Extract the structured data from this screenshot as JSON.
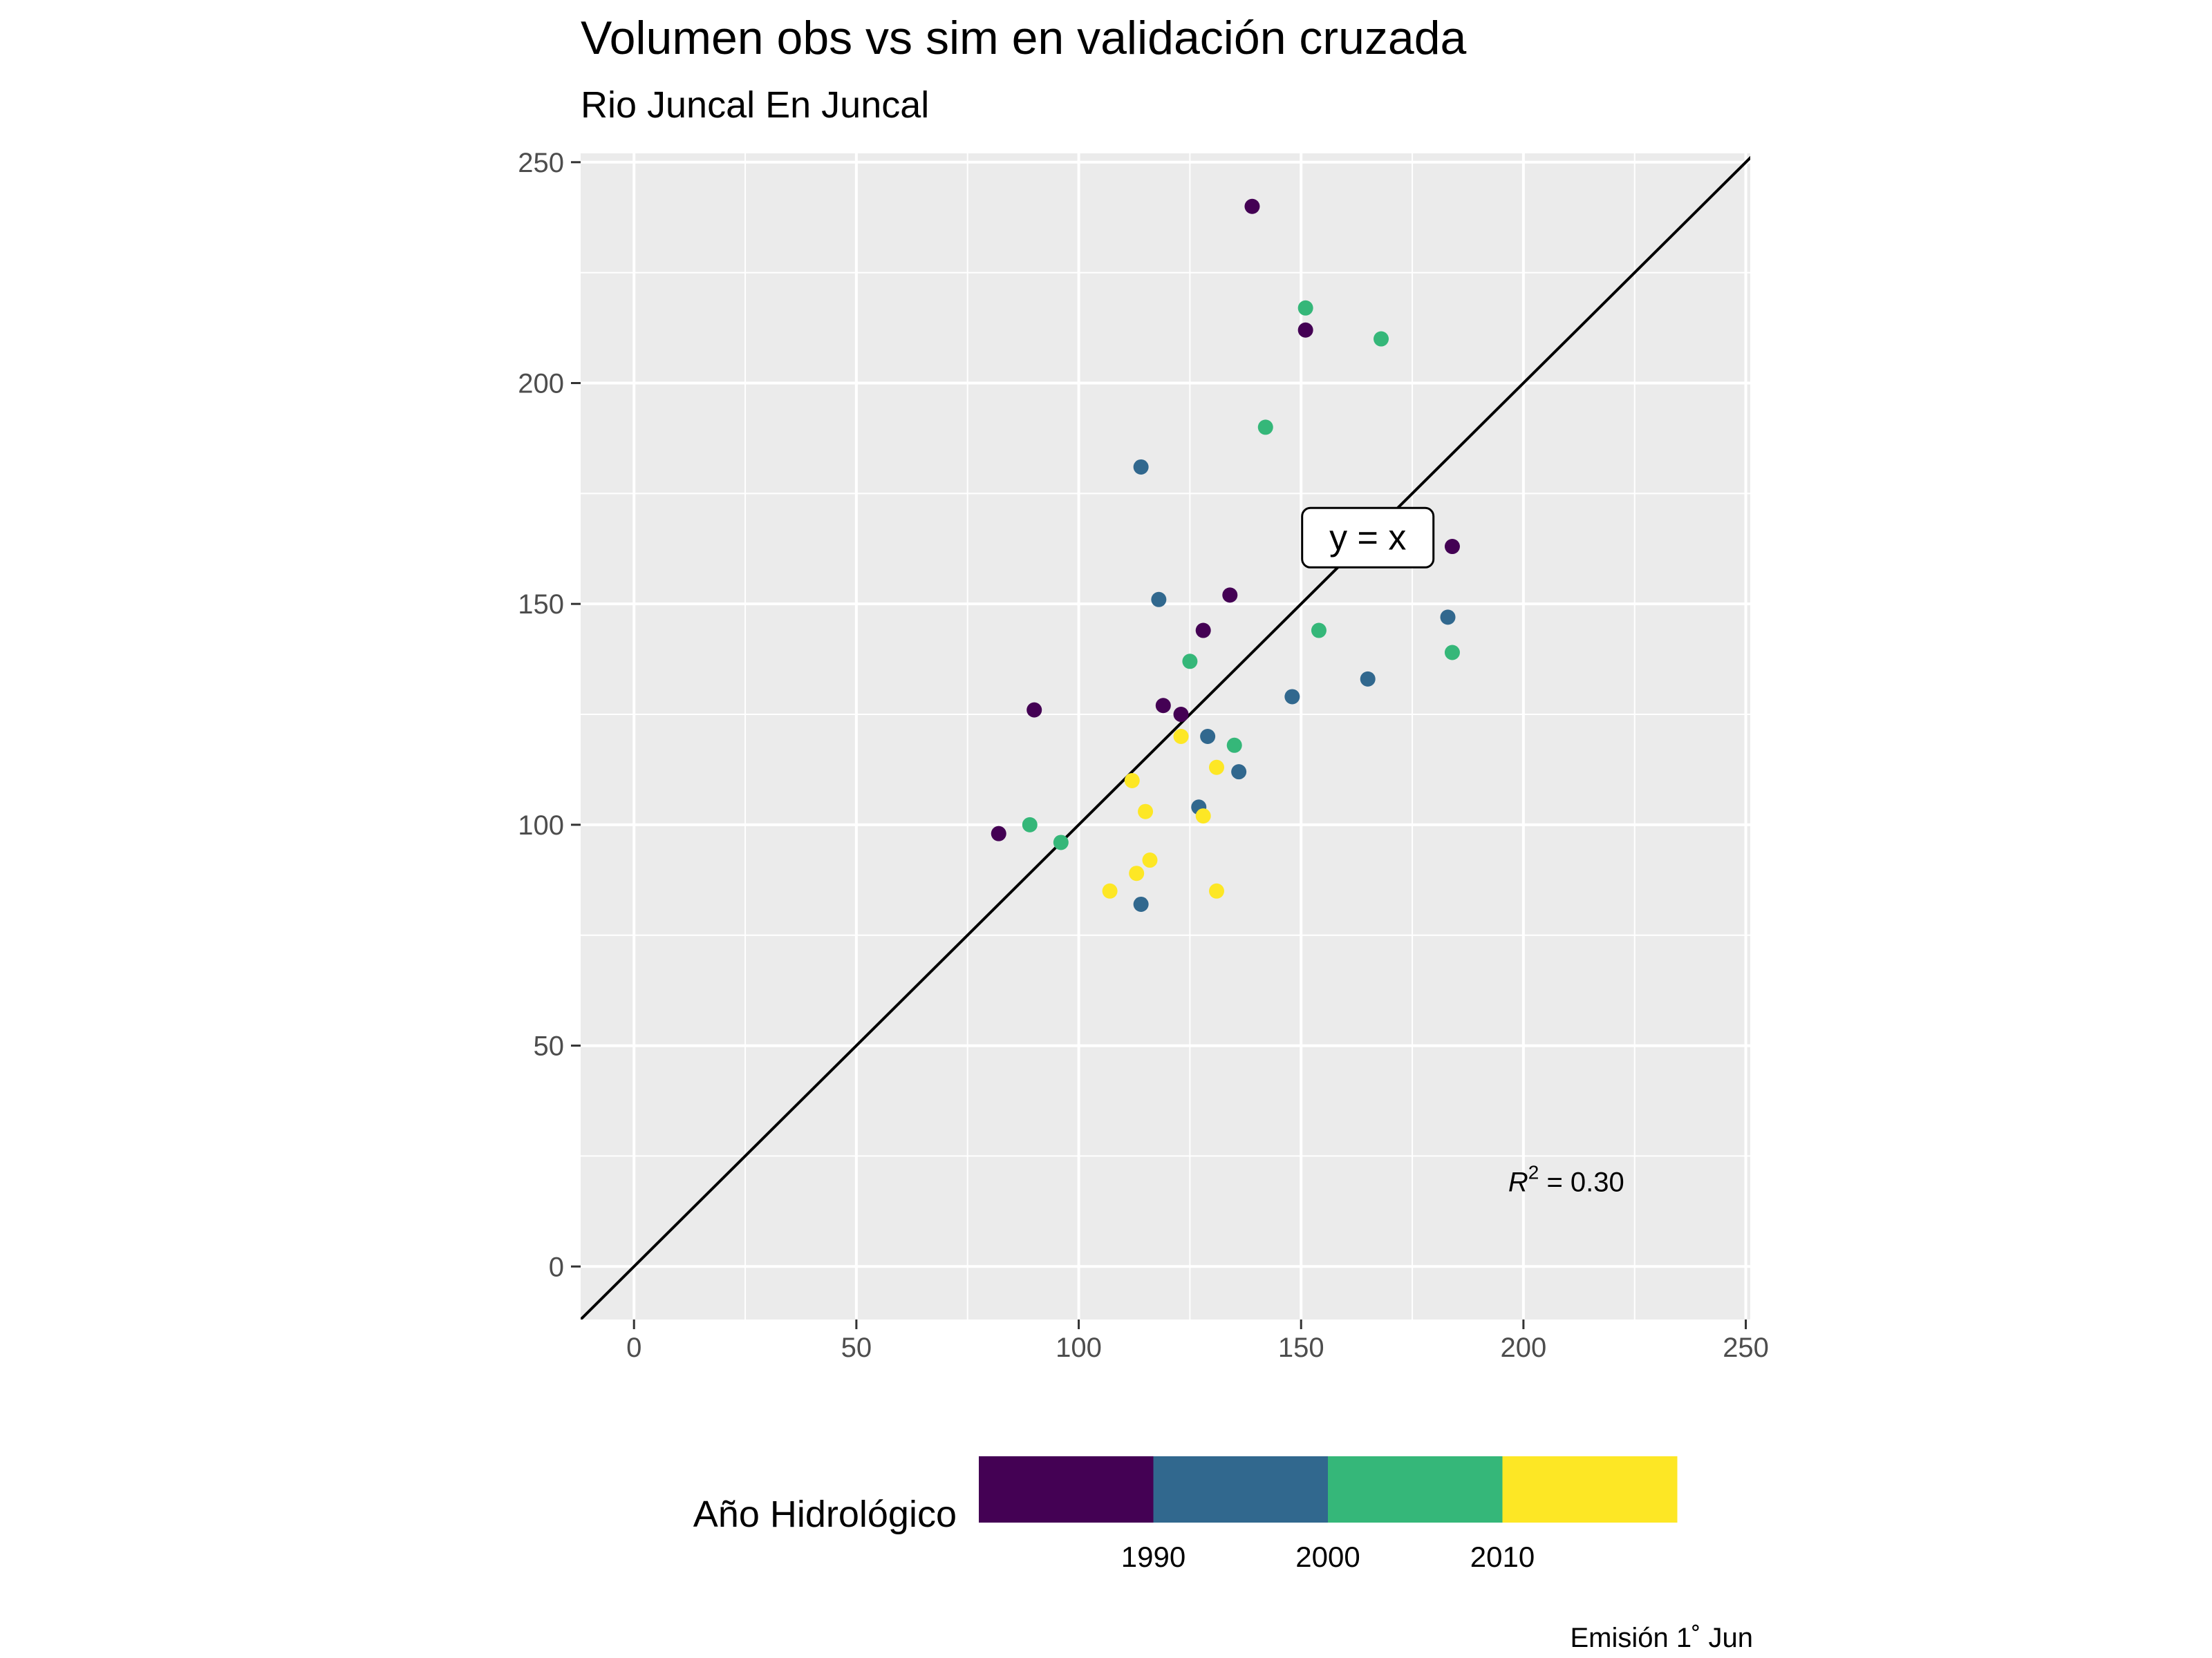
{
  "chart_data": {
    "type": "scatter",
    "title": "Volumen obs vs sim en validación cruzada",
    "subtitle": "Rio Juncal En Juncal",
    "xlabel": "",
    "ylabel": "",
    "xlim": [
      -12,
      251
    ],
    "ylim": [
      -12,
      252
    ],
    "x_ticks": [
      0,
      50,
      100,
      150,
      200,
      250
    ],
    "y_ticks": [
      0,
      50,
      100,
      150,
      200,
      250
    ],
    "grid": true,
    "reference_line": {
      "label": "y = x",
      "label_x": 165,
      "label_y": 165
    },
    "r_squared": {
      "prefix": "R",
      "superscript": "2",
      "suffix": " = 0.30",
      "x": 223,
      "y": 17
    },
    "legend": {
      "title": "Año Hidrológico",
      "position": "bottom",
      "ticks": [
        "1990",
        "2000",
        "2010"
      ],
      "bins": [
        {
          "color": "#440154"
        },
        {
          "color": "#31688E"
        },
        {
          "color": "#35B779"
        },
        {
          "color": "#FDE725"
        }
      ]
    },
    "caption": "Emisión 1˚ Jun",
    "points": [
      {
        "x": 139,
        "y": 240,
        "group": 0
      },
      {
        "x": 151,
        "y": 212,
        "group": 0
      },
      {
        "x": 184,
        "y": 163,
        "group": 0
      },
      {
        "x": 134,
        "y": 152,
        "group": 0
      },
      {
        "x": 128,
        "y": 144,
        "group": 0
      },
      {
        "x": 90,
        "y": 126,
        "group": 0
      },
      {
        "x": 119,
        "y": 127,
        "group": 0
      },
      {
        "x": 123,
        "y": 125,
        "group": 0
      },
      {
        "x": 82,
        "y": 98,
        "group": 0
      },
      {
        "x": 114,
        "y": 181,
        "group": 1
      },
      {
        "x": 118,
        "y": 151,
        "group": 1
      },
      {
        "x": 183,
        "y": 147,
        "group": 1
      },
      {
        "x": 165,
        "y": 133,
        "group": 1
      },
      {
        "x": 148,
        "y": 129,
        "group": 1
      },
      {
        "x": 129,
        "y": 120,
        "group": 1
      },
      {
        "x": 136,
        "y": 112,
        "group": 1
      },
      {
        "x": 127,
        "y": 104,
        "group": 1
      },
      {
        "x": 114,
        "y": 82,
        "group": 1
      },
      {
        "x": 151,
        "y": 217,
        "group": 2
      },
      {
        "x": 168,
        "y": 210,
        "group": 2
      },
      {
        "x": 142,
        "y": 190,
        "group": 2
      },
      {
        "x": 154,
        "y": 144,
        "group": 2
      },
      {
        "x": 184,
        "y": 139,
        "group": 2
      },
      {
        "x": 125,
        "y": 137,
        "group": 2
      },
      {
        "x": 135,
        "y": 118,
        "group": 2
      },
      {
        "x": 89,
        "y": 100,
        "group": 2
      },
      {
        "x": 96,
        "y": 96,
        "group": 2
      },
      {
        "x": 123,
        "y": 120,
        "group": 3
      },
      {
        "x": 131,
        "y": 113,
        "group": 3
      },
      {
        "x": 112,
        "y": 110,
        "group": 3
      },
      {
        "x": 115,
        "y": 103,
        "group": 3
      },
      {
        "x": 128,
        "y": 102,
        "group": 3
      },
      {
        "x": 116,
        "y": 92,
        "group": 3
      },
      {
        "x": 113,
        "y": 89,
        "group": 3
      },
      {
        "x": 107,
        "y": 85,
        "group": 3
      },
      {
        "x": 131,
        "y": 85,
        "group": 3
      }
    ]
  }
}
